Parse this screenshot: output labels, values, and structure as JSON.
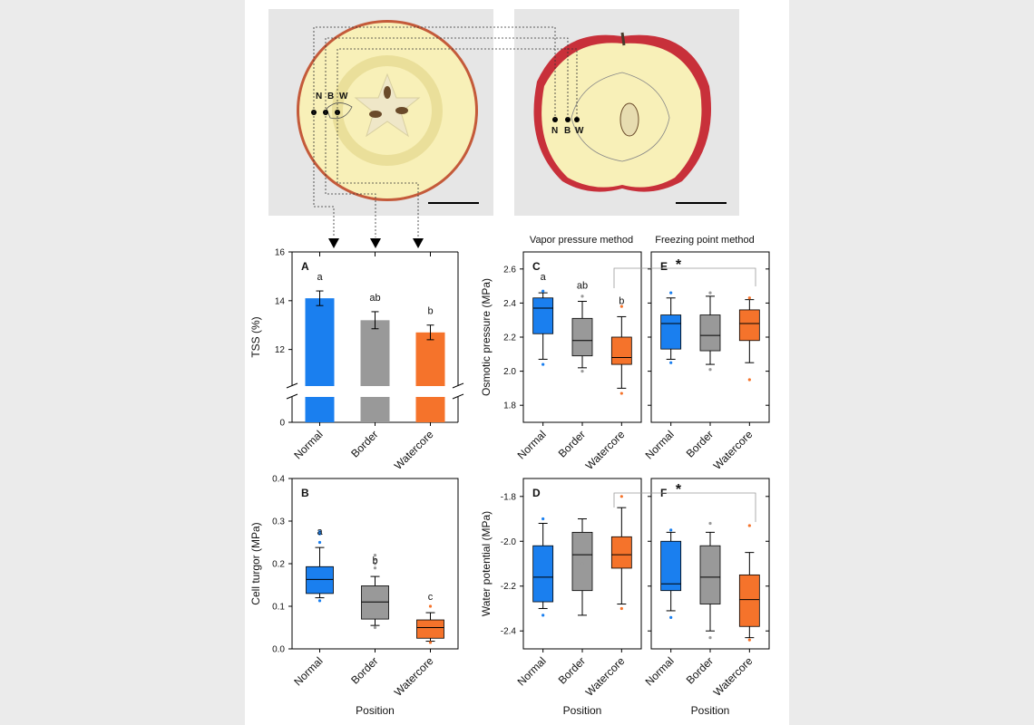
{
  "colors": {
    "normal": "#1a7fef",
    "border": "#999999",
    "watercore": "#f5732b",
    "photo_bg": "#e6e6e6",
    "flesh": "#f8f0b8",
    "skin_red": "#c8303a"
  },
  "photos": {
    "labels": [
      "N",
      "B",
      "W"
    ]
  },
  "methods": {
    "vapor": "Vapor pressure method",
    "freezing": "Freezing point method"
  },
  "categories": [
    "Normal",
    "Border",
    "Watercore"
  ],
  "position_label": "Position",
  "star": "*",
  "chart_data": [
    {
      "id": "A",
      "type": "bar",
      "panel_label": "A",
      "ylabel": "TSS (%)",
      "ylim": [
        0,
        16
      ],
      "axis_break": [
        0,
        10.5
      ],
      "yticks": [
        "0",
        "12",
        "14",
        "16"
      ],
      "categories": [
        "Normal",
        "Border",
        "Watercore"
      ],
      "values": [
        14.1,
        13.2,
        12.7
      ],
      "errors": [
        0.3,
        0.35,
        0.3
      ],
      "letters": [
        "a",
        "ab",
        "b"
      ]
    },
    {
      "id": "B",
      "type": "box",
      "panel_label": "B",
      "ylabel": "Cell turgor (MPa)",
      "xlabel": "Position",
      "ylim": [
        0,
        0.4
      ],
      "yticks": [
        "0.0",
        "0.1",
        "0.2",
        "0.3",
        "0.4"
      ],
      "categories": [
        "Normal",
        "Border",
        "Watercore"
      ],
      "boxes": [
        {
          "q1": 0.13,
          "median": 0.163,
          "q3": 0.193,
          "whislo": 0.12,
          "whishi": 0.238,
          "outliers": [
            0.113,
            0.25,
            0.27,
            0.275
          ]
        },
        {
          "q1": 0.07,
          "median": 0.11,
          "q3": 0.148,
          "whislo": 0.055,
          "whishi": 0.17,
          "outliers": [
            0.05,
            0.19,
            0.2,
            0.21,
            0.22
          ]
        },
        {
          "q1": 0.025,
          "median": 0.05,
          "q3": 0.068,
          "whislo": 0.018,
          "whishi": 0.085,
          "outliers": [
            0.015,
            0.1
          ]
        }
      ],
      "letters": [
        "a",
        "b",
        "c"
      ]
    },
    {
      "id": "C",
      "type": "box",
      "panel_label": "C",
      "ylabel": "Osmotic pressure (MPa)",
      "ylim": [
        1.7,
        2.7
      ],
      "yticks": [
        "1.8",
        "2.0",
        "2.2",
        "2.4",
        "2.6"
      ],
      "categories": [
        "Normal",
        "Border",
        "Watercore"
      ],
      "boxes": [
        {
          "q1": 2.22,
          "median": 2.37,
          "q3": 2.43,
          "whislo": 2.07,
          "whishi": 2.46,
          "outliers": [
            2.04,
            2.47
          ]
        },
        {
          "q1": 2.09,
          "median": 2.18,
          "q3": 2.31,
          "whislo": 2.02,
          "whishi": 2.41,
          "outliers": [
            2.0,
            2.44
          ]
        },
        {
          "q1": 2.04,
          "median": 2.08,
          "q3": 2.2,
          "whislo": 1.9,
          "whishi": 2.32,
          "outliers": [
            1.87,
            2.38
          ]
        }
      ],
      "letters": [
        "a",
        "ab",
        "b"
      ]
    },
    {
      "id": "E",
      "type": "box",
      "panel_label": "E",
      "ylim": [
        1.7,
        2.7
      ],
      "yticks": [
        "1.8",
        "2.0",
        "2.2",
        "2.4",
        "2.6"
      ],
      "categories": [
        "Normal",
        "Border",
        "Watercore"
      ],
      "boxes": [
        {
          "q1": 2.13,
          "median": 2.28,
          "q3": 2.33,
          "whislo": 2.07,
          "whishi": 2.43,
          "outliers": [
            2.05,
            2.46
          ]
        },
        {
          "q1": 2.12,
          "median": 2.21,
          "q3": 2.33,
          "whislo": 2.04,
          "whishi": 2.44,
          "outliers": [
            2.01,
            2.46
          ]
        },
        {
          "q1": 2.18,
          "median": 2.28,
          "q3": 2.36,
          "whislo": 2.05,
          "whishi": 2.42,
          "outliers": [
            1.95,
            2.43
          ]
        }
      ],
      "letters": []
    },
    {
      "id": "D",
      "type": "box",
      "panel_label": "D",
      "ylabel": "Water potential (MPa)",
      "xlabel": "Position",
      "ylim": [
        -2.48,
        -1.72
      ],
      "yticks": [
        "-2.4",
        "-2.2",
        "-2.0",
        "-1.8"
      ],
      "categories": [
        "Normal",
        "Border",
        "Watercore"
      ],
      "boxes": [
        {
          "q1": -2.27,
          "median": -2.16,
          "q3": -2.02,
          "whislo": -2.3,
          "whishi": -1.92,
          "outliers": [
            -2.33,
            -1.9
          ]
        },
        {
          "q1": -2.22,
          "median": -2.06,
          "q3": -1.96,
          "whislo": -2.33,
          "whishi": -1.9,
          "outliers": [
            -2.1
          ]
        },
        {
          "q1": -2.12,
          "median": -2.06,
          "q3": -1.98,
          "whislo": -2.28,
          "whishi": -1.85,
          "outliers": [
            -2.3,
            -1.8
          ]
        }
      ],
      "letters": []
    },
    {
      "id": "F",
      "type": "box",
      "panel_label": "F",
      "xlabel": "Position",
      "ylim": [
        -2.48,
        -1.72
      ],
      "yticks": [
        "-2.4",
        "-2.2",
        "-2.0",
        "-1.8"
      ],
      "categories": [
        "Normal",
        "Border",
        "Watercore"
      ],
      "boxes": [
        {
          "q1": -2.22,
          "median": -2.19,
          "q3": -2.0,
          "whislo": -2.31,
          "whishi": -1.96,
          "outliers": [
            -2.34,
            -1.95
          ]
        },
        {
          "q1": -2.28,
          "median": -2.16,
          "q3": -2.02,
          "whislo": -2.4,
          "whishi": -1.96,
          "outliers": [
            -2.43,
            -1.92
          ]
        },
        {
          "q1": -2.38,
          "median": -2.26,
          "q3": -2.15,
          "whislo": -2.43,
          "whishi": -2.05,
          "outliers": [
            -2.44,
            -1.93
          ]
        }
      ],
      "letters": []
    }
  ]
}
